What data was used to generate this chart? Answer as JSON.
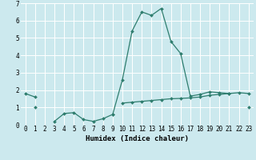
{
  "xlabel": "Humidex (Indice chaleur)",
  "x_values": [
    0,
    1,
    2,
    3,
    4,
    5,
    6,
    7,
    8,
    9,
    10,
    11,
    12,
    13,
    14,
    15,
    16,
    17,
    18,
    19,
    20,
    21,
    22,
    23
  ],
  "line1_y": [
    1.8,
    1.6,
    null,
    null,
    null,
    null,
    null,
    null,
    null,
    0.6,
    2.6,
    5.4,
    6.5,
    6.3,
    6.7,
    4.8,
    4.1,
    1.65,
    1.75,
    1.9,
    1.85,
    1.8,
    1.85,
    1.8
  ],
  "line2_y": [
    null,
    null,
    null,
    0.2,
    0.65,
    0.7,
    0.3,
    0.2,
    0.35,
    0.6,
    null,
    null,
    null,
    null,
    null,
    null,
    null,
    null,
    null,
    null,
    null,
    null,
    null,
    null
  ],
  "line3_y": [
    null,
    1.0,
    null,
    null,
    null,
    null,
    null,
    null,
    null,
    null,
    1.25,
    1.3,
    1.35,
    1.4,
    1.45,
    1.5,
    1.52,
    1.55,
    1.6,
    1.7,
    1.75,
    1.8,
    null,
    1.0
  ],
  "color": "#2e7d6e",
  "bg_color": "#cce9ee",
  "grid_color": "#ffffff",
  "ylim": [
    0,
    7
  ],
  "xlim": [
    -0.5,
    23.5
  ]
}
